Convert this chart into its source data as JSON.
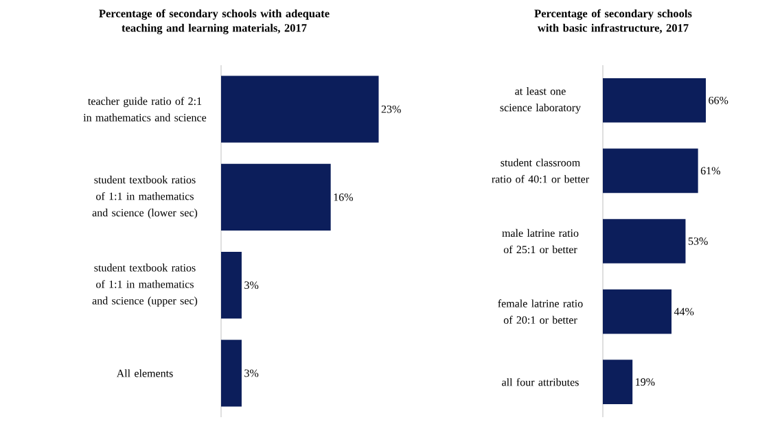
{
  "chart_data": [
    {
      "type": "bar",
      "orientation": "horizontal",
      "title": "Percentage of secondary schools with adequate teaching and learning materials, 2017",
      "categories": [
        "teacher guide ratio of 2:1 in mathematics and science",
        "student textbook ratios of 1:1 in mathematics and science (lower sec)",
        "student textbook ratios of 1:1 in mathematics and science (upper sec)",
        "All elements"
      ],
      "values": [
        23,
        16,
        3,
        3
      ],
      "value_labels": [
        "23%",
        "16%",
        "3%",
        "3%"
      ],
      "color": "#0c1e5b"
    },
    {
      "type": "bar",
      "orientation": "horizontal",
      "title": "Percentage of secondary schools with basic infrastructure, 2017",
      "categories": [
        "at least one science laboratory",
        "student classroom ratio of 40:1 or better",
        "male latrine ratio of 25:1 or better",
        "female latrine ratio of 20:1 or better",
        "all four attributes"
      ],
      "values": [
        66,
        61,
        53,
        44,
        19
      ],
      "value_labels": [
        "66%",
        "61%",
        "53%",
        "44%",
        "19%"
      ],
      "color": "#0c1e5b"
    }
  ]
}
